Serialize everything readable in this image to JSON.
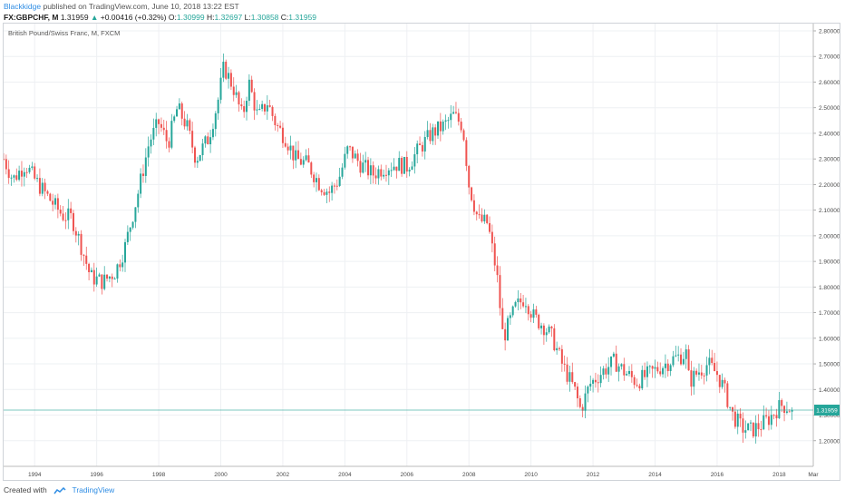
{
  "header": {
    "author": "Blackkidge",
    "published_text": " published on TradingView.com, June 10, 2018 13:22 EST",
    "symbol": "FX:GBPCHF, M",
    "last": "1.31959",
    "change": "+0.00416 (+0.32%)",
    "open_label": "O:",
    "open": "1.30999",
    "high_label": "H:",
    "high": "1.32697",
    "low_label": "L:",
    "low": "1.30858",
    "close_label": "C:",
    "close": "1.31959"
  },
  "footer": {
    "created_with": "Created with",
    "brand": "TradingView"
  },
  "colors": {
    "up": "#26a69a",
    "down": "#ef5350",
    "price_line": "#26a69a",
    "grid": "#eef0f3",
    "axis_text": "#4a4a4a"
  },
  "chart_data": {
    "type": "candlestick",
    "title": "British Pound/Swiss Franc, M, FXCM",
    "interval": "monthly",
    "ylim": [
      1.1,
      2.8
    ],
    "y_ticks": [
      "1.20000",
      "1.30000",
      "1.40000",
      "1.50000",
      "1.60000",
      "1.70000",
      "1.80000",
      "1.90000",
      "2.00000",
      "2.10000",
      "2.20000",
      "2.30000",
      "2.40000",
      "2.50000",
      "2.60000",
      "2.70000",
      "2.80000"
    ],
    "x_ticks": [
      "1994",
      "1996",
      "1998",
      "2000",
      "2002",
      "2004",
      "2006",
      "2008",
      "2010",
      "2012",
      "2014",
      "2016",
      "2018",
      "Mar"
    ],
    "x_range": [
      1993.0,
      2019.1
    ],
    "last_price": 1.31959,
    "last_price_label": "1.31959",
    "grid": true,
    "close_series": [
      {
        "t": 1993.0,
        "c": 2.3
      },
      {
        "t": 1993.3,
        "c": 2.22
      },
      {
        "t": 1993.7,
        "c": 2.28
      },
      {
        "t": 1994.0,
        "c": 2.22
      },
      {
        "t": 1994.5,
        "c": 2.14
      },
      {
        "t": 1994.9,
        "c": 2.08
      },
      {
        "t": 1995.2,
        "c": 2.07
      },
      {
        "t": 1995.5,
        "c": 1.96
      },
      {
        "t": 1995.8,
        "c": 1.84
      },
      {
        "t": 1996.2,
        "c": 1.82
      },
      {
        "t": 1996.6,
        "c": 1.86
      },
      {
        "t": 1996.9,
        "c": 1.95
      },
      {
        "t": 1997.3,
        "c": 2.15
      },
      {
        "t": 1997.7,
        "c": 2.37
      },
      {
        "t": 1998.0,
        "c": 2.44
      },
      {
        "t": 1998.3,
        "c": 2.36
      },
      {
        "t": 1998.6,
        "c": 2.5
      },
      {
        "t": 1998.9,
        "c": 2.43
      },
      {
        "t": 1999.2,
        "c": 2.3
      },
      {
        "t": 1999.6,
        "c": 2.38
      },
      {
        "t": 1999.9,
        "c": 2.52
      },
      {
        "t": 2000.1,
        "c": 2.66
      },
      {
        "t": 2000.4,
        "c": 2.58
      },
      {
        "t": 2000.7,
        "c": 2.46
      },
      {
        "t": 2000.9,
        "c": 2.6
      },
      {
        "t": 2001.2,
        "c": 2.46
      },
      {
        "t": 2001.5,
        "c": 2.52
      },
      {
        "t": 2001.8,
        "c": 2.43
      },
      {
        "t": 2002.1,
        "c": 2.38
      },
      {
        "t": 2002.4,
        "c": 2.3
      },
      {
        "t": 2002.8,
        "c": 2.28
      },
      {
        "t": 2003.2,
        "c": 2.2
      },
      {
        "t": 2003.5,
        "c": 2.17
      },
      {
        "t": 2003.8,
        "c": 2.22
      },
      {
        "t": 2004.1,
        "c": 2.34
      },
      {
        "t": 2004.5,
        "c": 2.28
      },
      {
        "t": 2004.9,
        "c": 2.24
      },
      {
        "t": 2005.3,
        "c": 2.27
      },
      {
        "t": 2005.7,
        "c": 2.28
      },
      {
        "t": 2006.0,
        "c": 2.27
      },
      {
        "t": 2006.4,
        "c": 2.34
      },
      {
        "t": 2006.8,
        "c": 2.4
      },
      {
        "t": 2007.2,
        "c": 2.43
      },
      {
        "t": 2007.5,
        "c": 2.47
      },
      {
        "t": 2007.8,
        "c": 2.43
      },
      {
        "t": 2008.0,
        "c": 2.2
      },
      {
        "t": 2008.3,
        "c": 2.06
      },
      {
        "t": 2008.6,
        "c": 2.05
      },
      {
        "t": 2008.9,
        "c": 1.85
      },
      {
        "t": 2009.1,
        "c": 1.6
      },
      {
        "t": 2009.5,
        "c": 1.72
      },
      {
        "t": 2009.8,
        "c": 1.76
      },
      {
        "t": 2010.1,
        "c": 1.68
      },
      {
        "t": 2010.4,
        "c": 1.65
      },
      {
        "t": 2010.7,
        "c": 1.6
      },
      {
        "t": 2011.0,
        "c": 1.5
      },
      {
        "t": 2011.4,
        "c": 1.4
      },
      {
        "t": 2011.6,
        "c": 1.32
      },
      {
        "t": 2011.9,
        "c": 1.42
      },
      {
        "t": 2012.3,
        "c": 1.47
      },
      {
        "t": 2012.7,
        "c": 1.51
      },
      {
        "t": 2013.0,
        "c": 1.47
      },
      {
        "t": 2013.4,
        "c": 1.43
      },
      {
        "t": 2013.8,
        "c": 1.46
      },
      {
        "t": 2014.2,
        "c": 1.49
      },
      {
        "t": 2014.6,
        "c": 1.52
      },
      {
        "t": 2015.0,
        "c": 1.54
      },
      {
        "t": 2015.1,
        "c": 1.43
      },
      {
        "t": 2015.4,
        "c": 1.47
      },
      {
        "t": 2015.7,
        "c": 1.5
      },
      {
        "t": 2016.0,
        "c": 1.46
      },
      {
        "t": 2016.2,
        "c": 1.41
      },
      {
        "t": 2016.5,
        "c": 1.3
      },
      {
        "t": 2016.8,
        "c": 1.25
      },
      {
        "t": 2017.1,
        "c": 1.24
      },
      {
        "t": 2017.4,
        "c": 1.26
      },
      {
        "t": 2017.7,
        "c": 1.29
      },
      {
        "t": 2017.9,
        "c": 1.32
      },
      {
        "t": 2018.1,
        "c": 1.34
      },
      {
        "t": 2018.3,
        "c": 1.33
      },
      {
        "t": 2018.45,
        "c": 1.3196
      }
    ]
  }
}
